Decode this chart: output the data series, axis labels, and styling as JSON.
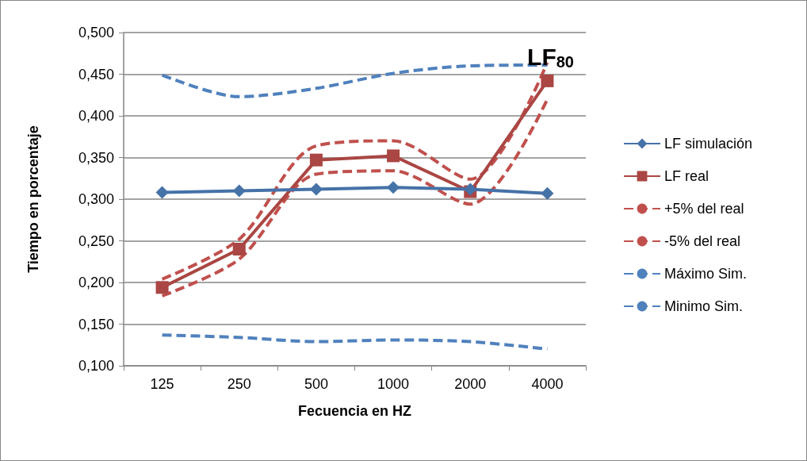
{
  "chart_data": {
    "type": "line",
    "title": "LF$_{80}$",
    "xlabel": "Fecuencia en HZ",
    "ylabel": "Tiempo en porcentaje",
    "categories": [
      "125",
      "250",
      "500",
      "1000",
      "2000",
      "4000"
    ],
    "series": [
      {
        "name": "LF simulación",
        "color": "#4572a7",
        "marker": "diamond",
        "line_style": "solid",
        "values": [
          0.308,
          0.31,
          0.312,
          0.314,
          0.312,
          0.307
        ]
      },
      {
        "name": "LF real",
        "color": "#aa4643",
        "marker": "square",
        "line_style": "solid",
        "values": [
          0.194,
          0.24,
          0.347,
          0.352,
          0.309,
          0.442
        ]
      },
      {
        "name": "+5% del real",
        "color": "#c0504d",
        "marker": "none",
        "line_style": "dashed",
        "values": [
          0.204,
          0.252,
          0.364,
          0.37,
          0.324,
          0.464
        ]
      },
      {
        "name": "-5% del real",
        "color": "#c0504d",
        "marker": "none",
        "line_style": "dashed",
        "values": [
          0.184,
          0.228,
          0.33,
          0.334,
          0.294,
          0.42
        ]
      },
      {
        "name": "Máximo Sim.",
        "color": "#4f81bd",
        "marker": "none",
        "line_style": "dashed",
        "values": [
          0.449,
          0.423,
          0.433,
          0.451,
          0.46,
          0.461
        ]
      },
      {
        "name": "Minimo Sim.",
        "color": "#4f81bd",
        "marker": "none",
        "line_style": "dashed",
        "values": [
          0.137,
          0.134,
          0.129,
          0.131,
          0.129,
          0.12
        ]
      }
    ],
    "ylim": [
      0.1,
      0.5
    ],
    "yticks": [
      {
        "value": 0.1,
        "label": "0,100"
      },
      {
        "value": 0.15,
        "label": "0,150"
      },
      {
        "value": 0.2,
        "label": "0,200"
      },
      {
        "value": 0.25,
        "label": "0,250"
      },
      {
        "value": 0.3,
        "label": "0,300"
      },
      {
        "value": 0.35,
        "label": "0,350"
      },
      {
        "value": 0.4,
        "label": "0,400"
      },
      {
        "value": 0.45,
        "label": "0,450"
      },
      {
        "value": 0.5,
        "label": "0,500"
      }
    ],
    "grid": "y",
    "legend": "right"
  }
}
